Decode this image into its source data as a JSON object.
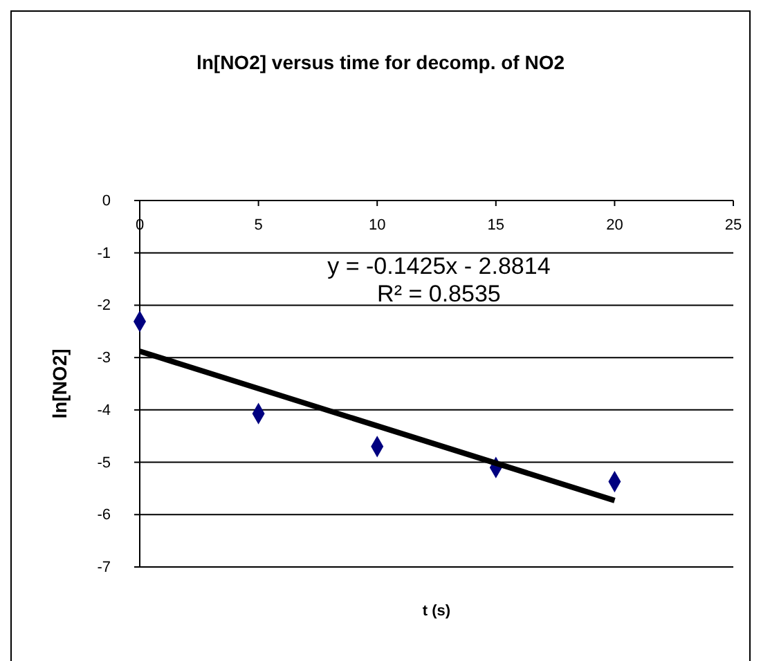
{
  "chart_data": {
    "type": "scatter",
    "title": "ln[NO2] versus time for decomp. of NO2",
    "xlabel": "t (s)",
    "ylabel": "ln[NO2]",
    "series": [
      {
        "type": "scatter",
        "color": "#000080",
        "marker": "diamond",
        "x": [
          0,
          5,
          10,
          15,
          20
        ],
        "values": [
          -2.31,
          -4.07,
          -4.7,
          -5.1,
          -5.37
        ]
      },
      {
        "type": "line",
        "color": "#000000",
        "marker": "none",
        "line_style": "solid",
        "x": [
          0,
          20
        ],
        "values": [
          -2.88,
          -5.73
        ]
      }
    ],
    "xlim": [
      0,
      25
    ],
    "xticks": [
      0,
      5,
      10,
      15,
      20,
      25
    ],
    "ylim": [
      -7,
      0
    ],
    "yticks": [
      -7,
      -6,
      -5,
      -4,
      -3,
      -2,
      -1,
      0
    ],
    "grid": "y",
    "annotations": [
      "y = -0.1425x - 2.8814\nR² = 0.8535"
    ]
  }
}
